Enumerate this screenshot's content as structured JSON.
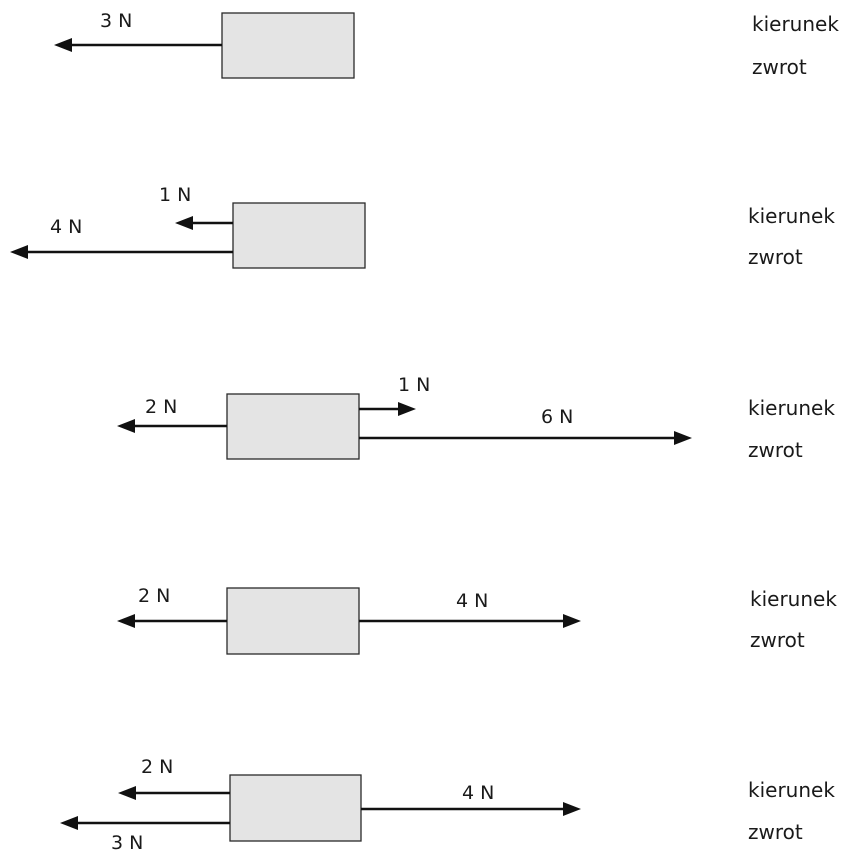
{
  "diagrams": [
    {
      "forces": [
        {
          "label": "3 N",
          "direction": "left",
          "magnitude": 3
        }
      ],
      "prompts": {
        "direction": "kierunek",
        "sense": "zwrot"
      }
    },
    {
      "forces": [
        {
          "label": "1 N",
          "direction": "left",
          "magnitude": 1
        },
        {
          "label": "4 N",
          "direction": "left",
          "magnitude": 4
        }
      ],
      "prompts": {
        "direction": "kierunek",
        "sense": "zwrot"
      }
    },
    {
      "forces": [
        {
          "label": "2 N",
          "direction": "left",
          "magnitude": 2
        },
        {
          "label": "1 N",
          "direction": "right",
          "magnitude": 1
        },
        {
          "label": "6 N",
          "direction": "right",
          "magnitude": 6
        }
      ],
      "prompts": {
        "direction": "kierunek",
        "sense": "zwrot"
      }
    },
    {
      "forces": [
        {
          "label": "2 N",
          "direction": "left",
          "magnitude": 2
        },
        {
          "label": "4 N",
          "direction": "right",
          "magnitude": 4
        }
      ],
      "prompts": {
        "direction": "kierunek",
        "sense": "zwrot"
      }
    },
    {
      "forces": [
        {
          "label": "2 N",
          "direction": "left",
          "magnitude": 2
        },
        {
          "label": "3 N",
          "direction": "left",
          "magnitude": 3
        },
        {
          "label": "4 N",
          "direction": "right",
          "magnitude": 4
        }
      ],
      "prompts": {
        "direction": "kierunek",
        "sense": "zwrot"
      }
    }
  ]
}
